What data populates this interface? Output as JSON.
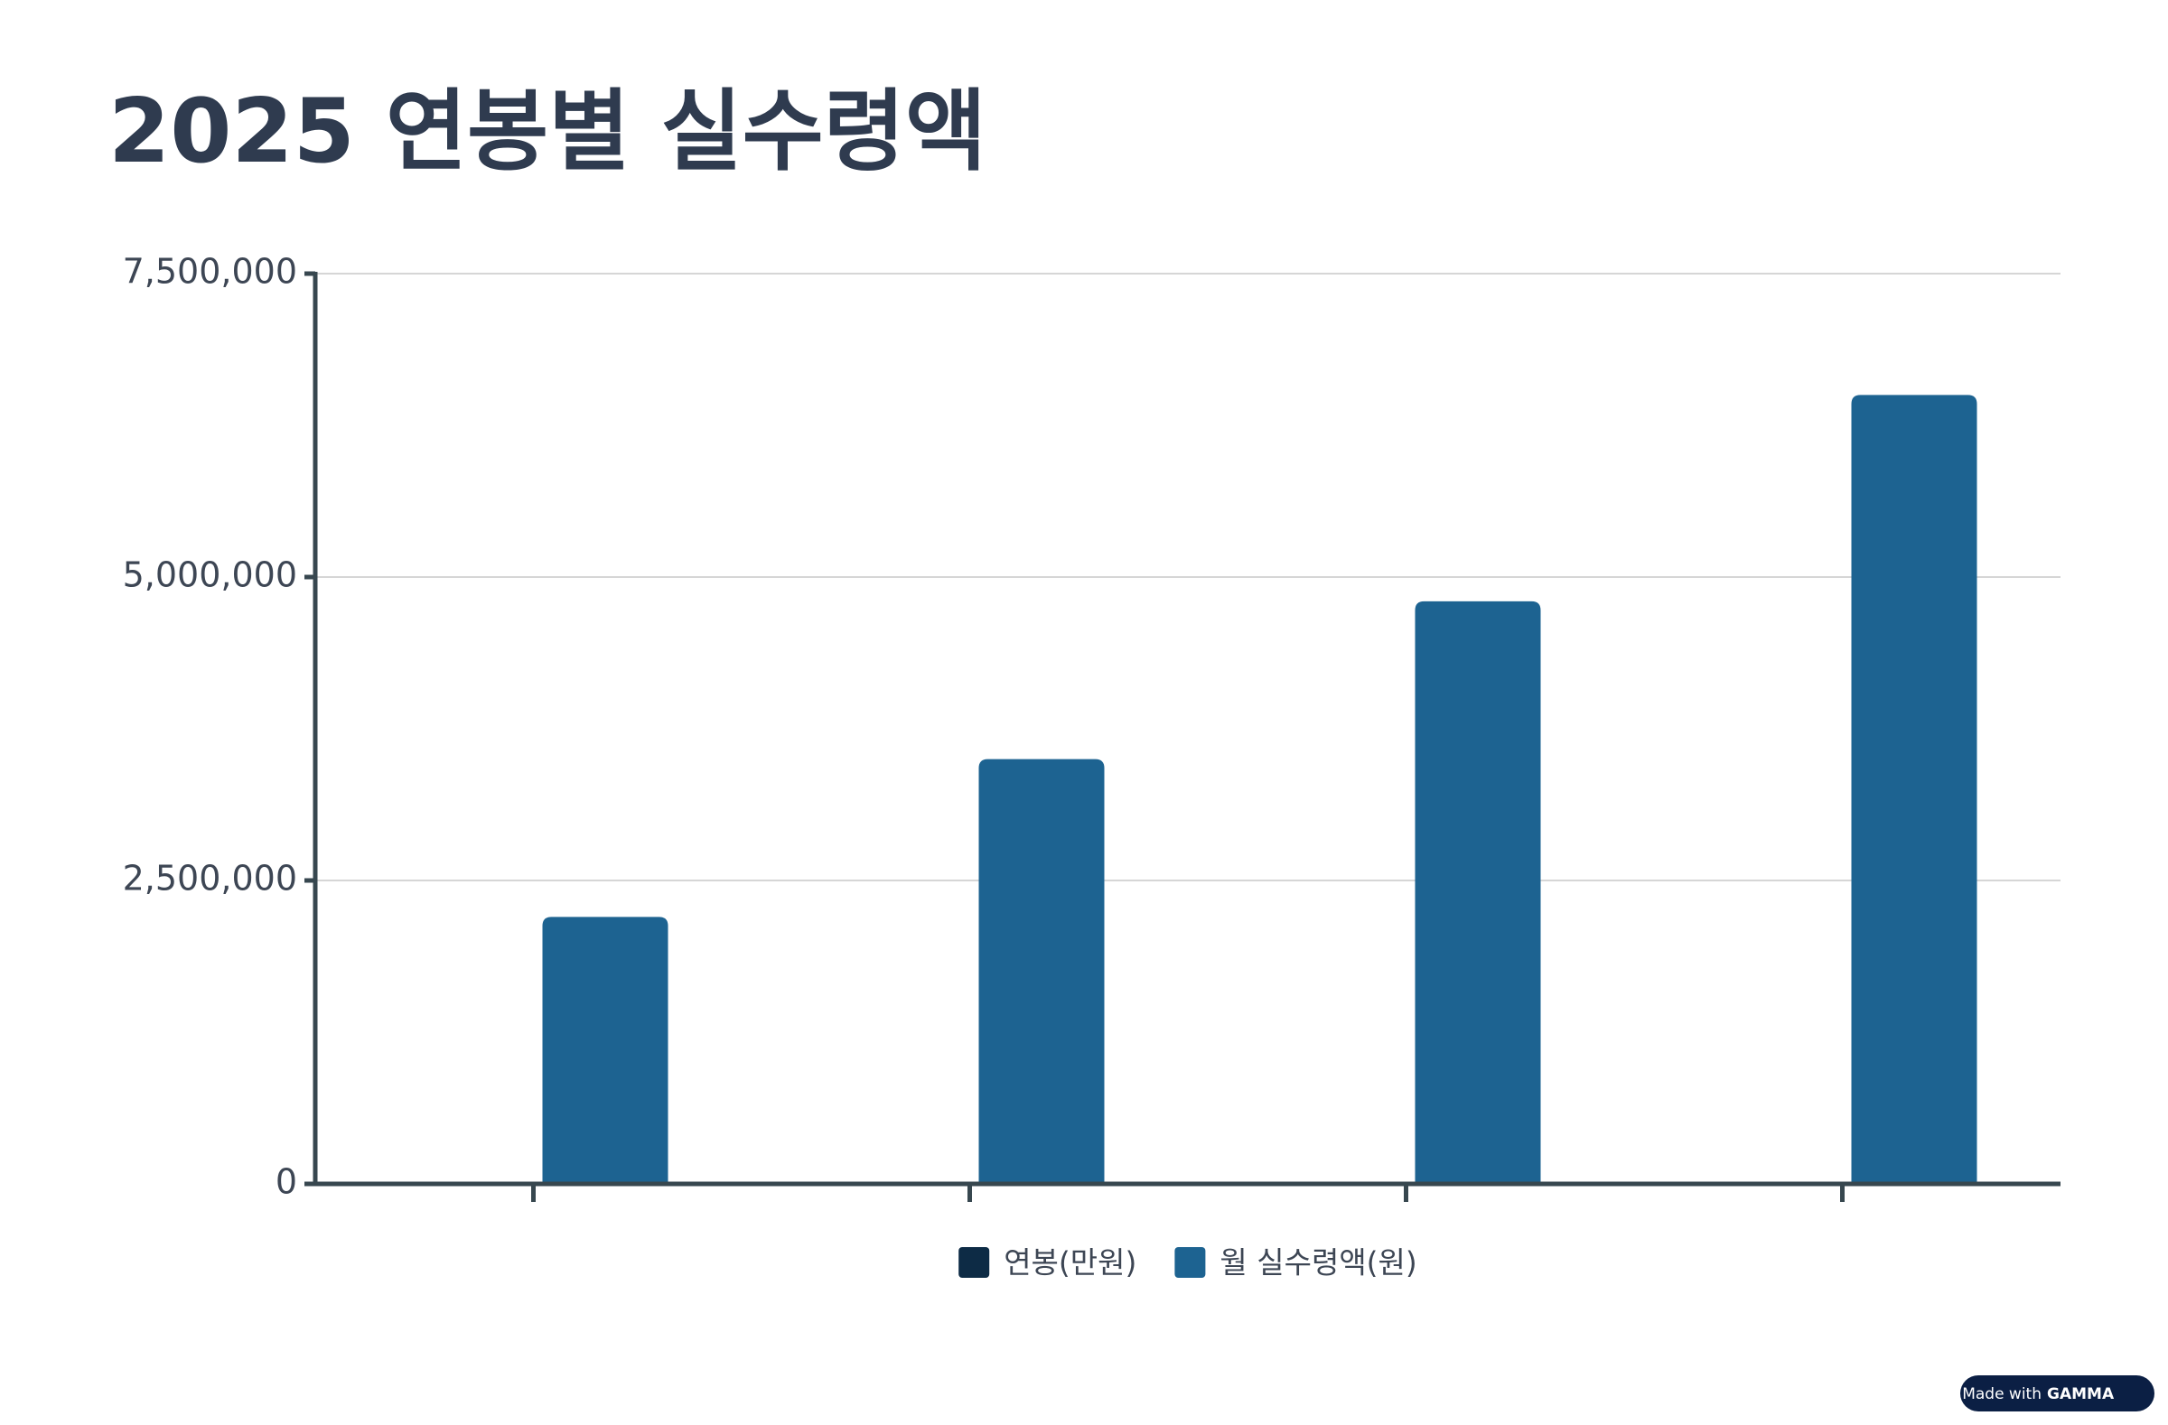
{
  "chart_data": {
    "type": "bar",
    "title": "2025 연봉별 실수령액",
    "categories": [
      null,
      null,
      null,
      null
    ],
    "series": [
      {
        "name": "연봉(만원)",
        "color": "#0d2b45",
        "values": [
          0,
          0,
          0,
          0
        ]
      },
      {
        "name": "월 실수령액(원)",
        "color": "#1d6391",
        "values": [
          2200000,
          3500000,
          4800000,
          6500000
        ]
      }
    ],
    "ylim": [
      0,
      7500000
    ],
    "yticks": [
      0,
      {
        "value": 2500000,
        "label": "2,500,000"
      },
      {
        "value": 5000000,
        "label": "5,000,000"
      },
      {
        "value": 7500000,
        "label": "7,500,000"
      }
    ],
    "grid": true,
    "legend": "bottom"
  },
  "badge": {
    "prefix": "Made with",
    "brand": "GAMMA"
  }
}
